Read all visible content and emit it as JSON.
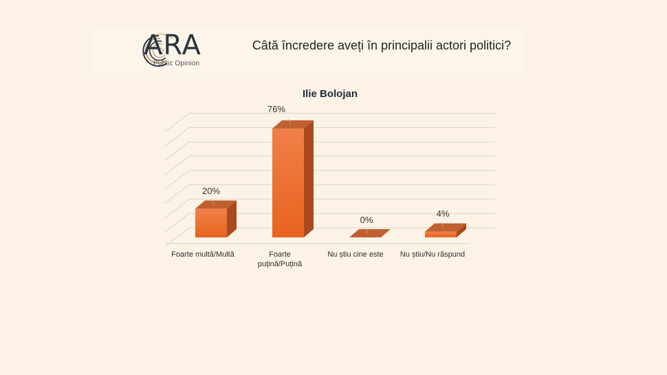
{
  "header": {
    "logo": {
      "name": "ARA",
      "subtitle": "Public Opinion"
    },
    "question": "Câtă încredere aveți în principalii actori politici?"
  },
  "colors": {
    "background": "#fcf3e6",
    "bar_front": "#ec6a2a",
    "bar_front_light": "#f08048",
    "bar_side": "#a84a1e",
    "bar_top": "#c0602e",
    "gridline": "#d9d3ca",
    "title": "#1f2a3a"
  },
  "chart_data": {
    "type": "bar",
    "style": "3d-column",
    "title": "Ilie Bolojan",
    "categories": [
      "Foarte multă/Multă",
      "Foarte puțină/Puțină",
      "Nu știu cine este",
      "Nu știu/Nu răspund"
    ],
    "values": [
      20,
      76,
      0,
      4
    ],
    "value_labels": [
      "20%",
      "76%",
      "0%",
      "4%"
    ],
    "unit": "%",
    "xlabel": "",
    "ylabel": "",
    "ylim": [
      0,
      80
    ],
    "grid": true,
    "y_axis_labels_visible": false,
    "legend": "none"
  },
  "labels": {
    "cat0": "Foarte multă/Multă",
    "cat1_line1": "Foarte",
    "cat1_line2": "puțină/Puțină",
    "cat2": "Nu știu cine este",
    "cat3": "Nu știu/Nu răspund",
    "val0": "20%",
    "val1": "76%",
    "val2": "0%",
    "val3": "4%"
  }
}
